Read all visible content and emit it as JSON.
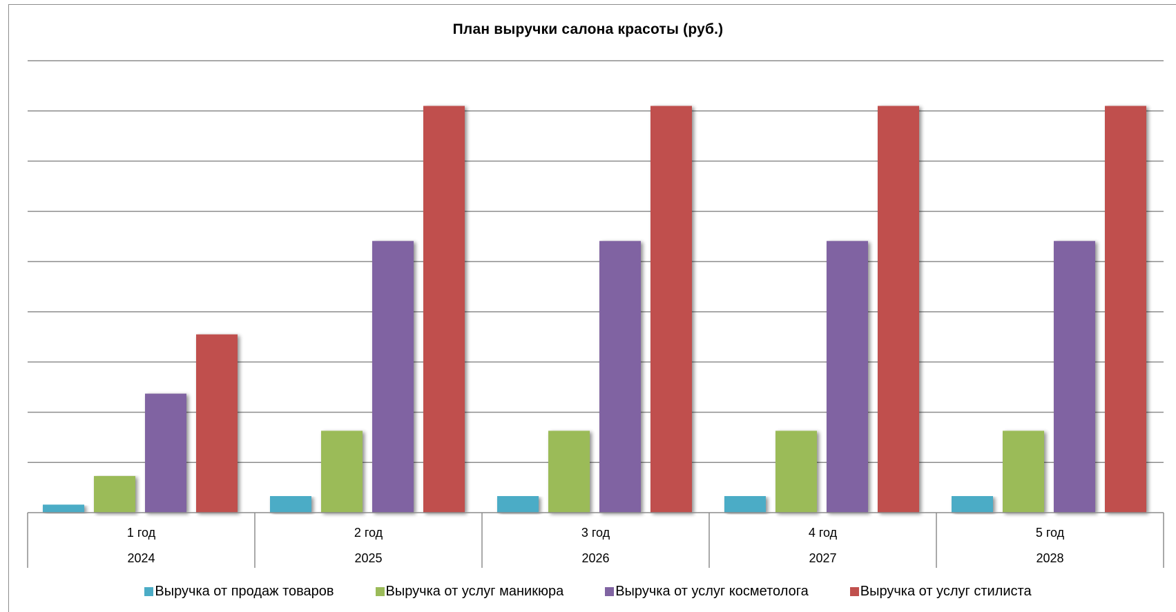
{
  "chart_data": {
    "type": "bar",
    "title": "План выручки салона красоты (руб.)",
    "categories": [
      {
        "label": "1 год",
        "year": "2024"
      },
      {
        "label": "2 год",
        "year": "2025"
      },
      {
        "label": "3 год",
        "year": "2026"
      },
      {
        "label": "4 год",
        "year": "2027"
      },
      {
        "label": "5 год",
        "year": "2028"
      }
    ],
    "series": [
      {
        "name": "Выручка от продаж товаров",
        "color": "#4bacc6",
        "values": [
          0.16,
          0.33,
          0.33,
          0.33,
          0.33
        ]
      },
      {
        "name": "Выручка от услуг маникюра",
        "color": "#9bbb59",
        "values": [
          0.73,
          1.63,
          1.63,
          1.63,
          1.63
        ]
      },
      {
        "name": "Выручка от услуг косметолога",
        "color": "#8064a2",
        "values": [
          2.37,
          5.41,
          5.41,
          5.41,
          5.41
        ]
      },
      {
        "name": "Выручка от услуг стилиста",
        "color": "#c0504d",
        "values": [
          3.55,
          8.1,
          8.1,
          8.1,
          8.1
        ]
      }
    ],
    "ylim": [
      0,
      9
    ],
    "gridlines": 9,
    "y_tick_labels_shown": false,
    "grid": true,
    "legend_position": "bottom"
  }
}
